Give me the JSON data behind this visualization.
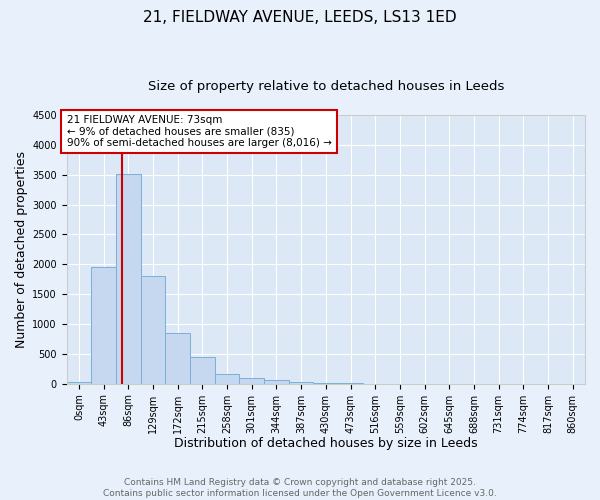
{
  "title": "21, FIELDWAY AVENUE, LEEDS, LS13 1ED",
  "subtitle": "Size of property relative to detached houses in Leeds",
  "xlabel": "Distribution of detached houses by size in Leeds",
  "ylabel": "Number of detached properties",
  "bar_labels": [
    "0sqm",
    "43sqm",
    "86sqm",
    "129sqm",
    "172sqm",
    "215sqm",
    "258sqm",
    "301sqm",
    "344sqm",
    "387sqm",
    "430sqm",
    "473sqm",
    "516sqm",
    "559sqm",
    "602sqm",
    "645sqm",
    "688sqm",
    "731sqm",
    "774sqm",
    "817sqm",
    "860sqm"
  ],
  "bar_heights": [
    30,
    1950,
    3510,
    1810,
    855,
    455,
    160,
    95,
    55,
    35,
    20,
    5,
    0,
    0,
    0,
    0,
    0,
    0,
    0,
    0,
    0
  ],
  "bar_color": "#c5d8f0",
  "bar_edge_color": "#7aafd4",
  "vline_x": 1.73,
  "vline_color": "#cc0000",
  "annotation_text": "21 FIELDWAY AVENUE: 73sqm\n← 9% of detached houses are smaller (835)\n90% of semi-detached houses are larger (8,016) →",
  "annotation_box_color": "#ffffff",
  "annotation_border_color": "#cc0000",
  "ylim": [
    0,
    4500
  ],
  "yticks": [
    0,
    500,
    1000,
    1500,
    2000,
    2500,
    3000,
    3500,
    4000,
    4500
  ],
  "bg_color": "#e8f0fb",
  "plot_bg_color": "#dce8f5",
  "footer_text": "Contains HM Land Registry data © Crown copyright and database right 2025.\nContains public sector information licensed under the Open Government Licence v3.0.",
  "title_fontsize": 11,
  "subtitle_fontsize": 9.5,
  "axis_label_fontsize": 9,
  "tick_fontsize": 7,
  "annotation_fontsize": 7.5,
  "footer_fontsize": 6.5
}
